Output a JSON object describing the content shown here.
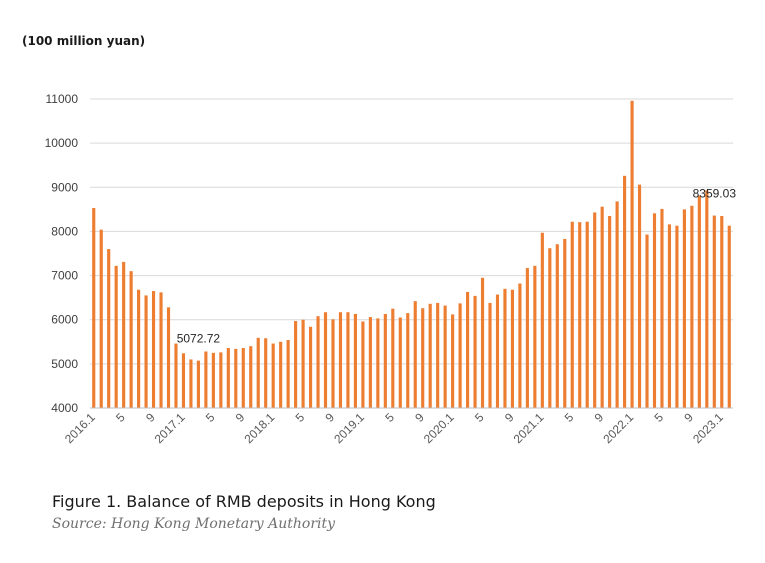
{
  "figure": {
    "unit": "(100 million yuan)",
    "title": "Figure 1. Balance of RMB deposits in Hong Kong",
    "source": "Source: Hong Kong Monetary Authority"
  },
  "colors": {
    "bar": "#ED7D31",
    "grid": "#d9d9d9",
    "axis_text": "#595959"
  },
  "chart_data": {
    "type": "bar",
    "title": "",
    "xlabel": "",
    "ylabel": "(100 million yuan)",
    "ylim": [
      4000,
      11000
    ],
    "yticks": [
      "4000",
      "5000",
      "6000",
      "7000",
      "8000",
      "9000",
      "10000",
      "11000"
    ],
    "grid": true,
    "legend": "none",
    "categories": [
      "2016.1",
      "2016.2",
      "2016.3",
      "2016.4",
      "2016.5",
      "2016.6",
      "2016.7",
      "2016.8",
      "2016.9",
      "2016.10",
      "2016.11",
      "2016.12",
      "2017.1",
      "2017.2",
      "2017.3",
      "2017.4",
      "2017.5",
      "2017.6",
      "2017.7",
      "2017.8",
      "2017.9",
      "2017.10",
      "2017.11",
      "2017.12",
      "2018.1",
      "2018.2",
      "2018.3",
      "2018.4",
      "2018.5",
      "2018.6",
      "2018.7",
      "2018.8",
      "2018.9",
      "2018.10",
      "2018.11",
      "2018.12",
      "2019.1",
      "2019.2",
      "2019.3",
      "2019.4",
      "2019.5",
      "2019.6",
      "2019.7",
      "2019.8",
      "2019.9",
      "2019.10",
      "2019.11",
      "2019.12",
      "2020.1",
      "2020.2",
      "2020.3",
      "2020.4",
      "2020.5",
      "2020.6",
      "2020.7",
      "2020.8",
      "2020.9",
      "2020.10",
      "2020.11",
      "2020.12",
      "2021.1",
      "2021.2",
      "2021.3",
      "2021.4",
      "2021.5",
      "2021.6",
      "2021.7",
      "2021.8",
      "2021.9",
      "2021.10",
      "2021.11",
      "2021.12",
      "2022.1",
      "2022.2",
      "2022.3",
      "2022.4",
      "2022.5",
      "2022.6",
      "2022.7",
      "2022.8",
      "2022.9",
      "2022.10",
      "2022.11",
      "2022.12",
      "2023.1",
      "2023.2"
    ],
    "xtick_labels": [
      {
        "index": 0,
        "label": "2016.1"
      },
      {
        "index": 4,
        "label": "5"
      },
      {
        "index": 8,
        "label": "9"
      },
      {
        "index": 12,
        "label": "2017.1"
      },
      {
        "index": 16,
        "label": "5"
      },
      {
        "index": 20,
        "label": "9"
      },
      {
        "index": 24,
        "label": "2018.1"
      },
      {
        "index": 28,
        "label": "5"
      },
      {
        "index": 32,
        "label": "9"
      },
      {
        "index": 36,
        "label": "2019.1"
      },
      {
        "index": 40,
        "label": "5"
      },
      {
        "index": 44,
        "label": "9"
      },
      {
        "index": 48,
        "label": "2020.1"
      },
      {
        "index": 52,
        "label": "5"
      },
      {
        "index": 56,
        "label": "9"
      },
      {
        "index": 60,
        "label": "2021.1"
      },
      {
        "index": 64,
        "label": "5"
      },
      {
        "index": 68,
        "label": "9"
      },
      {
        "index": 72,
        "label": "2022.1"
      },
      {
        "index": 76,
        "label": "5"
      },
      {
        "index": 80,
        "label": "9"
      },
      {
        "index": 84,
        "label": "2023.1"
      }
    ],
    "values": [
      8530,
      8040,
      7600,
      7220,
      7310,
      7100,
      6680,
      6550,
      6650,
      6620,
      6280,
      5460,
      5240,
      5100,
      5072.72,
      5280,
      5250,
      5260,
      5360,
      5340,
      5360,
      5400,
      5590,
      5580,
      5460,
      5500,
      5540,
      5970,
      6000,
      5840,
      6080,
      6170,
      6010,
      6170,
      6170,
      6130,
      5960,
      6060,
      6030,
      6130,
      6250,
      6050,
      6150,
      6420,
      6260,
      6360,
      6380,
      6320,
      6120,
      6370,
      6630,
      6540,
      6950,
      6380,
      6570,
      6700,
      6680,
      6820,
      7170,
      7220,
      7970,
      7620,
      7710,
      7830,
      8220,
      8210,
      8220,
      8430,
      8560,
      8350,
      8680,
      9260,
      10960,
      9060,
      7930,
      8410,
      8510,
      8160,
      8130,
      8500,
      8580,
      8810,
      8930,
      8359.03,
      8350,
      8130
    ],
    "annotations": [
      {
        "index": 14,
        "text": "5072.72"
      },
      {
        "index": 83,
        "text": "8359.03"
      }
    ]
  }
}
